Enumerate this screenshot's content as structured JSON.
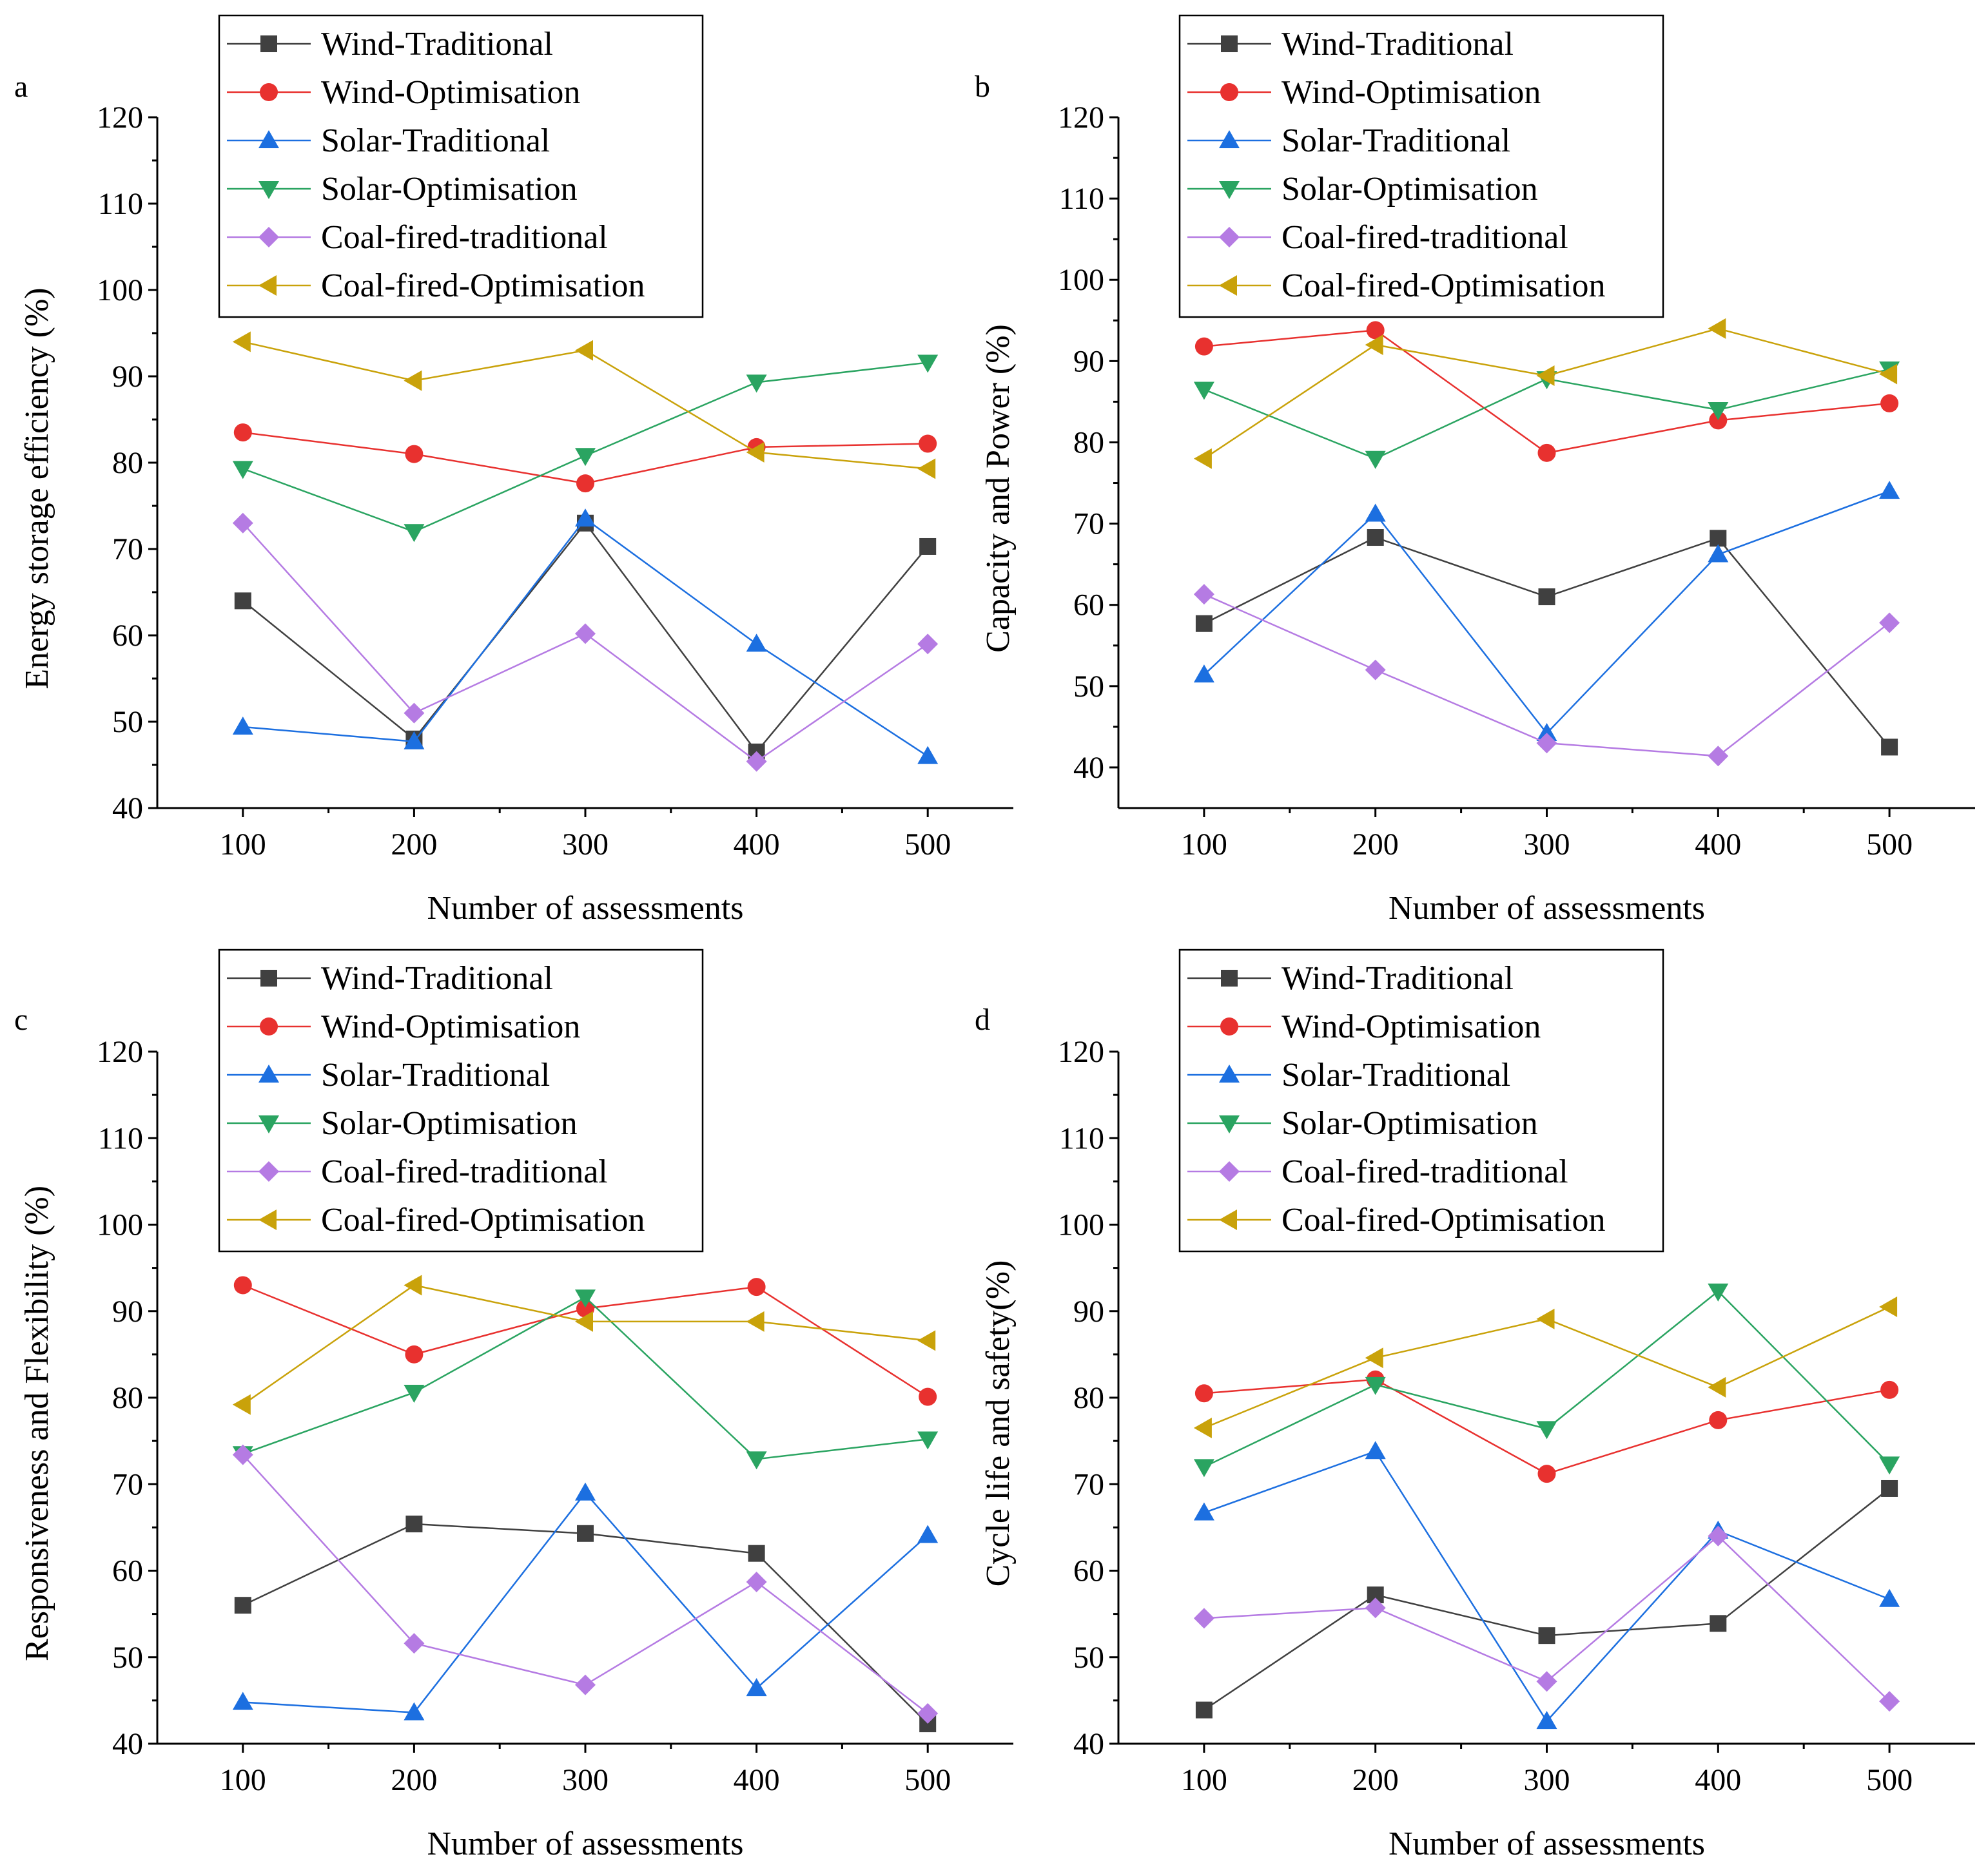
{
  "chart_data": [
    {
      "type": "line",
      "panel_label": "a",
      "xlabel": "Number of assessments",
      "ylabel": "Energy storage efficiency (%)",
      "x": [
        100,
        200,
        300,
        400,
        500
      ],
      "xlim": [
        50,
        550
      ],
      "ylim": [
        40,
        120
      ],
      "xticks": [
        100,
        200,
        300,
        400,
        500
      ],
      "yticks": [
        40,
        50,
        60,
        70,
        80,
        90,
        100,
        110,
        120
      ],
      "legend_position": "top-left",
      "series": [
        {
          "name": "Wind-Traditional",
          "color": "#404040",
          "marker": "square",
          "values": [
            64,
            48,
            73,
            46.5,
            70.3
          ]
        },
        {
          "name": "Wind-Optimisation",
          "color": "#e8312f",
          "marker": "circle",
          "values": [
            83.5,
            81,
            77.6,
            81.8,
            82.2
          ]
        },
        {
          "name": "Solar-Traditional",
          "color": "#1c6fe0",
          "marker": "triangle-up",
          "values": [
            49.4,
            47.7,
            73.5,
            59,
            46
          ]
        },
        {
          "name": "Solar-Optimisation",
          "color": "#2aa461",
          "marker": "triangle-down",
          "values": [
            79.3,
            72,
            80.8,
            89.3,
            91.6
          ]
        },
        {
          "name": "Coal-fired-traditional",
          "color": "#b57be3",
          "marker": "diamond",
          "values": [
            73,
            51,
            60.2,
            45.4,
            59
          ]
        },
        {
          "name": "Coal-fired-Optimisation",
          "color": "#c9a20a",
          "marker": "triangle-left",
          "values": [
            94,
            89.5,
            93,
            81.2,
            79.3
          ]
        }
      ]
    },
    {
      "type": "line",
      "panel_label": "b",
      "xlabel": "Number of assessments",
      "ylabel": "Capacity and Power (%)",
      "x": [
        100,
        200,
        300,
        400,
        500
      ],
      "xlim": [
        50,
        550
      ],
      "ylim": [
        35,
        120
      ],
      "xticks": [
        100,
        200,
        300,
        400,
        500
      ],
      "yticks": [
        40,
        50,
        60,
        70,
        80,
        90,
        100,
        110,
        120
      ],
      "legend_position": "top-left",
      "series": [
        {
          "name": "Wind-Traditional",
          "color": "#404040",
          "marker": "square",
          "values": [
            57.7,
            68.3,
            61,
            68.2,
            42.5
          ]
        },
        {
          "name": "Wind-Optimisation",
          "color": "#e8312f",
          "marker": "circle",
          "values": [
            91.8,
            93.8,
            78.7,
            82.7,
            84.8
          ]
        },
        {
          "name": "Solar-Traditional",
          "color": "#1c6fe0",
          "marker": "triangle-up",
          "values": [
            51.4,
            71.2,
            44.2,
            66.2,
            74
          ]
        },
        {
          "name": "Solar-Optimisation",
          "color": "#2aa461",
          "marker": "triangle-down",
          "values": [
            86.5,
            78,
            87.8,
            84,
            89
          ]
        },
        {
          "name": "Coal-fired-traditional",
          "color": "#b57be3",
          "marker": "diamond",
          "values": [
            61.3,
            52,
            43,
            41.4,
            57.8
          ]
        },
        {
          "name": "Coal-fired-Optimisation",
          "color": "#c9a20a",
          "marker": "triangle-left",
          "values": [
            78,
            92,
            88.2,
            94,
            88.4
          ]
        }
      ]
    },
    {
      "type": "line",
      "panel_label": "c",
      "xlabel": "Number of assessments",
      "ylabel": "Responsiveness and Flexibility (%)",
      "x": [
        100,
        200,
        300,
        400,
        500
      ],
      "xlim": [
        50,
        550
      ],
      "ylim": [
        40,
        120
      ],
      "xticks": [
        100,
        200,
        300,
        400,
        500
      ],
      "yticks": [
        40,
        50,
        60,
        70,
        80,
        90,
        100,
        110,
        120
      ],
      "legend_position": "top-left",
      "series": [
        {
          "name": "Wind-Traditional",
          "color": "#404040",
          "marker": "square",
          "values": [
            56,
            65.4,
            64.3,
            62,
            42.3
          ]
        },
        {
          "name": "Wind-Optimisation",
          "color": "#e8312f",
          "marker": "circle",
          "values": [
            93,
            85,
            90.3,
            92.8,
            80.1
          ]
        },
        {
          "name": "Solar-Traditional",
          "color": "#1c6fe0",
          "marker": "triangle-up",
          "values": [
            44.8,
            43.6,
            69,
            46.4,
            64.1
          ]
        },
        {
          "name": "Solar-Optimisation",
          "color": "#2aa461",
          "marker": "triangle-down",
          "values": [
            73.5,
            80.6,
            91.6,
            72.9,
            75.2
          ]
        },
        {
          "name": "Coal-fired-traditional",
          "color": "#b57be3",
          "marker": "diamond",
          "values": [
            73.4,
            51.6,
            46.8,
            58.7,
            43.5
          ]
        },
        {
          "name": "Coal-fired-Optimisation",
          "color": "#c9a20a",
          "marker": "triangle-left",
          "values": [
            79.2,
            93,
            88.8,
            88.8,
            86.6
          ]
        }
      ]
    },
    {
      "type": "line",
      "panel_label": "d",
      "xlabel": "Number of assessments",
      "ylabel": "Cycle life and safety(%)",
      "x": [
        100,
        200,
        300,
        400,
        500
      ],
      "xlim": [
        50,
        550
      ],
      "ylim": [
        40,
        120
      ],
      "xticks": [
        100,
        200,
        300,
        400,
        500
      ],
      "yticks": [
        40,
        50,
        60,
        70,
        80,
        90,
        100,
        110,
        120
      ],
      "legend_position": "top-left",
      "series": [
        {
          "name": "Wind-Traditional",
          "color": "#404040",
          "marker": "square",
          "values": [
            43.9,
            57.2,
            52.5,
            53.9,
            69.5
          ]
        },
        {
          "name": "Wind-Optimisation",
          "color": "#e8312f",
          "marker": "circle",
          "values": [
            80.5,
            82.1,
            71.2,
            77.4,
            80.9
          ]
        },
        {
          "name": "Solar-Traditional",
          "color": "#1c6fe0",
          "marker": "triangle-up",
          "values": [
            66.7,
            73.8,
            42.6,
            64.6,
            56.7
          ]
        },
        {
          "name": "Solar-Optimisation",
          "color": "#2aa461",
          "marker": "triangle-down",
          "values": [
            72,
            81.5,
            76.4,
            92.3,
            72.3
          ]
        },
        {
          "name": "Coal-fired-traditional",
          "color": "#b57be3",
          "marker": "diamond",
          "values": [
            54.5,
            55.7,
            47.2,
            64,
            44.9
          ]
        },
        {
          "name": "Coal-fired-Optimisation",
          "color": "#c9a20a",
          "marker": "triangle-left",
          "values": [
            76.5,
            84.6,
            89.1,
            81.2,
            90.5
          ]
        }
      ]
    }
  ]
}
